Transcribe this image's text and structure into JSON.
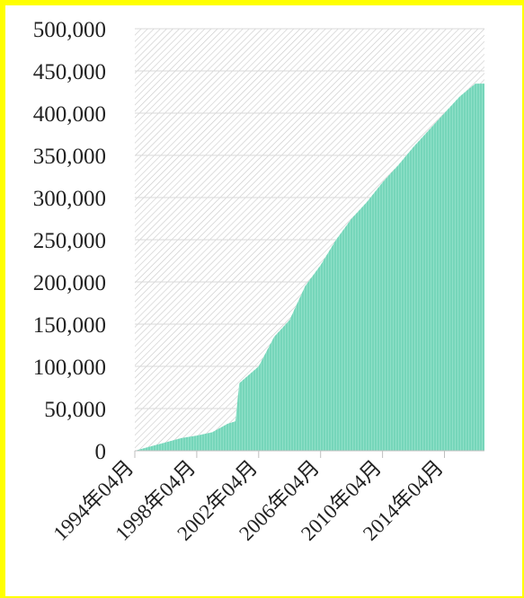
{
  "chart_data": {
    "type": "area",
    "title": "",
    "xlabel": "",
    "ylabel": "",
    "x_tick_labels": [
      "1994年04月",
      "1998年04月",
      "2002年04月",
      "2006年04月",
      "2010年04月",
      "2014年04月"
    ],
    "y_tick_labels": [
      "0",
      "50,000",
      "100,000",
      "150,000",
      "200,000",
      "250,000",
      "300,000",
      "350,000",
      "400,000",
      "450,000",
      "500,000"
    ],
    "ylim": [
      0,
      500000
    ],
    "grid": true,
    "legend": "none",
    "colors": {
      "fill": "#7fdcc0",
      "fill_line": "#5ccfae",
      "background_hatch": "#c8c8c8",
      "gridline": "#d9d9d9",
      "page_border": "#ffff00"
    },
    "series": [
      {
        "x": [
          "1994-04",
          "1995-04",
          "1996-04",
          "1997-04",
          "1998-04",
          "1999-04",
          "2000-04",
          "2000-10",
          "2001-01",
          "2002-04",
          "2003-04",
          "2004-04",
          "2005-04",
          "2006-04",
          "2007-04",
          "2008-04",
          "2009-04",
          "2010-04",
          "2011-04",
          "2012-04",
          "2013-04",
          "2014-04",
          "2015-04",
          "2016-04"
        ],
        "values": [
          0,
          5000,
          10000,
          15000,
          18000,
          22000,
          32000,
          35000,
          80000,
          100000,
          135000,
          155000,
          195000,
          220000,
          250000,
          275000,
          295000,
          318000,
          338000,
          360000,
          380000,
          400000,
          420000,
          435000
        ]
      }
    ]
  }
}
